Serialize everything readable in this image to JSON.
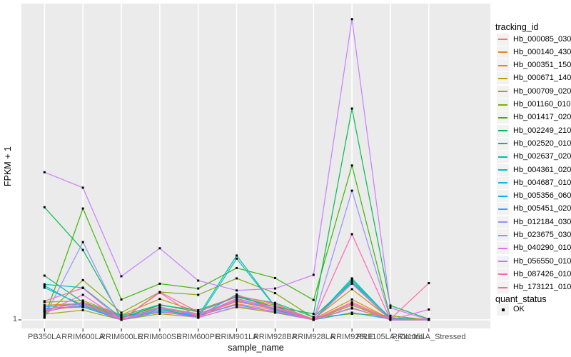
{
  "chart_data": {
    "type": "line",
    "title": "",
    "xlabel": "sample_name",
    "ylabel": "FPKM + 1",
    "x_categories": [
      "PB350LA",
      "RRIM600LA",
      "RRIM600LE",
      "RRIM600SE",
      "RRIM600PE",
      "RRIM901LA",
      "RRIM928BA",
      "RRIM928LA",
      "RRIM928LE",
      "RRII105LA_Control",
      "RRII105LA_Stressed"
    ],
    "y_axis": {
      "scale": "log10",
      "tick_labels": [
        "1"
      ],
      "tick_values": [
        1
      ],
      "ylim_approx": [
        1,
        1400
      ]
    },
    "legend": {
      "color_title": "tracking_id",
      "shape_title": "quant_status",
      "shape_items": [
        {
          "label": "OK",
          "marker": "black-square"
        }
      ],
      "position": "right"
    },
    "series": [
      {
        "id": "Hb_000085_030",
        "color": "#F8766D",
        "values": [
          1.3,
          1.34,
          1.02,
          1.22,
          1.1,
          1.45,
          1.25,
          1.0,
          1.5,
          1.02,
          1.0
        ]
      },
      {
        "id": "Hb_000140_430",
        "color": "#EA8331",
        "values": [
          1.22,
          1.4,
          1.05,
          1.3,
          1.12,
          1.52,
          1.28,
          1.0,
          1.45,
          1.0,
          1.0
        ]
      },
      {
        "id": "Hb_000351_150",
        "color": "#D89000",
        "values": [
          1.4,
          1.46,
          1.08,
          1.34,
          1.15,
          1.56,
          1.3,
          1.02,
          1.6,
          1.02,
          1.0
        ]
      },
      {
        "id": "Hb_000671_140",
        "color": "#C09B00",
        "values": [
          1.5,
          1.56,
          1.12,
          1.62,
          1.2,
          1.7,
          1.4,
          1.02,
          2.03,
          1.02,
          1.0
        ]
      },
      {
        "id": "Hb_000709_020",
        "color": "#A3A500",
        "values": [
          1.14,
          1.25,
          1.0,
          1.15,
          1.06,
          1.34,
          1.18,
          1.0,
          1.4,
          1.0,
          1.0
        ]
      },
      {
        "id": "Hb_001160_010",
        "color": "#7CAE00",
        "values": [
          1.1,
          2.5,
          1.18,
          1.9,
          1.78,
          2.6,
          1.85,
          1.05,
          1.15,
          1.1,
          1.0
        ]
      },
      {
        "id": "Hb_001417_020",
        "color": "#39B600",
        "values": [
          1.05,
          13.0,
          1.6,
          2.3,
          2.06,
          3.3,
          2.62,
          1.58,
          35.0,
          1.05,
          1.0
        ]
      },
      {
        "id": "Hb_002249_210",
        "color": "#00BB4E",
        "values": [
          13.4,
          5.0,
          1.05,
          1.4,
          1.25,
          1.7,
          1.35,
          1.15,
          130.0,
          1.39,
          1.02
        ]
      },
      {
        "id": "Hb_002520_010",
        "color": "#00BF7D",
        "values": [
          2.77,
          1.5,
          1.1,
          1.42,
          1.2,
          1.72,
          1.48,
          1.07,
          2.4,
          1.05,
          1.0
        ]
      },
      {
        "id": "Hb_002637_020",
        "color": "#00C1A3",
        "values": [
          2.2,
          1.35,
          1.0,
          1.26,
          1.1,
          4.4,
          1.36,
          1.0,
          2.6,
          1.02,
          1.0
        ]
      },
      {
        "id": "Hb_004361_020",
        "color": "#00BFC4",
        "values": [
          2.27,
          2.1,
          1.05,
          1.3,
          1.05,
          4.1,
          1.35,
          1.0,
          2.5,
          1.02,
          1.0
        ]
      },
      {
        "id": "Hb_004687_010",
        "color": "#00BAE0",
        "values": [
          2.1,
          1.4,
          1.0,
          1.2,
          1.08,
          1.8,
          1.26,
          1.0,
          2.35,
          1.0,
          1.0
        ]
      },
      {
        "id": "Hb_005356_060",
        "color": "#00B0F6",
        "values": [
          1.35,
          1.45,
          1.05,
          1.3,
          1.15,
          1.56,
          1.3,
          1.0,
          1.18,
          1.02,
          1.0
        ]
      },
      {
        "id": "Hb_005451_020",
        "color": "#35A2FF",
        "values": [
          1.3,
          1.36,
          1.0,
          1.2,
          1.1,
          1.42,
          1.2,
          1.0,
          1.32,
          1.0,
          1.0
        ]
      },
      {
        "id": "Hb_012184_030",
        "color": "#9590FF",
        "values": [
          1.07,
          6.0,
          1.0,
          1.3,
          1.15,
          1.55,
          1.3,
          1.0,
          19.6,
          1.02,
          1.0
        ]
      },
      {
        "id": "Hb_023675_030",
        "color": "#C77CFF",
        "values": [
          30.0,
          21.0,
          2.73,
          5.2,
          2.47,
          1.97,
          2.06,
          2.82,
          1020.0,
          1.32,
          1.0
        ]
      },
      {
        "id": "Hb_040290_010",
        "color": "#E76BF3",
        "values": [
          1.2,
          1.46,
          1.0,
          1.22,
          1.05,
          1.36,
          1.22,
          1.0,
          1.46,
          1.0,
          1.27
        ]
      },
      {
        "id": "Hb_056550_010",
        "color": "#FA62DB",
        "values": [
          1.2,
          1.78,
          1.0,
          1.35,
          1.1,
          1.64,
          1.3,
          1.0,
          2.3,
          1.0,
          1.0
        ]
      },
      {
        "id": "Hb_087426_010",
        "color": "#FF62BC",
        "values": [
          1.54,
          2.08,
          1.0,
          1.87,
          1.05,
          1.6,
          1.35,
          1.0,
          7.2,
          1.0,
          1.02
        ]
      },
      {
        "id": "Hb_173121_010",
        "color": "#FF6A98",
        "values": [
          1.25,
          1.5,
          1.0,
          1.9,
          1.2,
          1.75,
          1.45,
          1.0,
          1.3,
          1.02,
          2.33
        ]
      }
    ],
    "style": {
      "panel_bg": "#EBEBEB",
      "grid_color": "#FFFFFF",
      "point_color": "#000000",
      "tick_text_color": "#4D4D4D",
      "legend_key_bg": "#F2F2F2"
    },
    "layout_hints": {
      "grid": "vertical-per-category-plus-y1",
      "marker": "small-black-square"
    }
  }
}
